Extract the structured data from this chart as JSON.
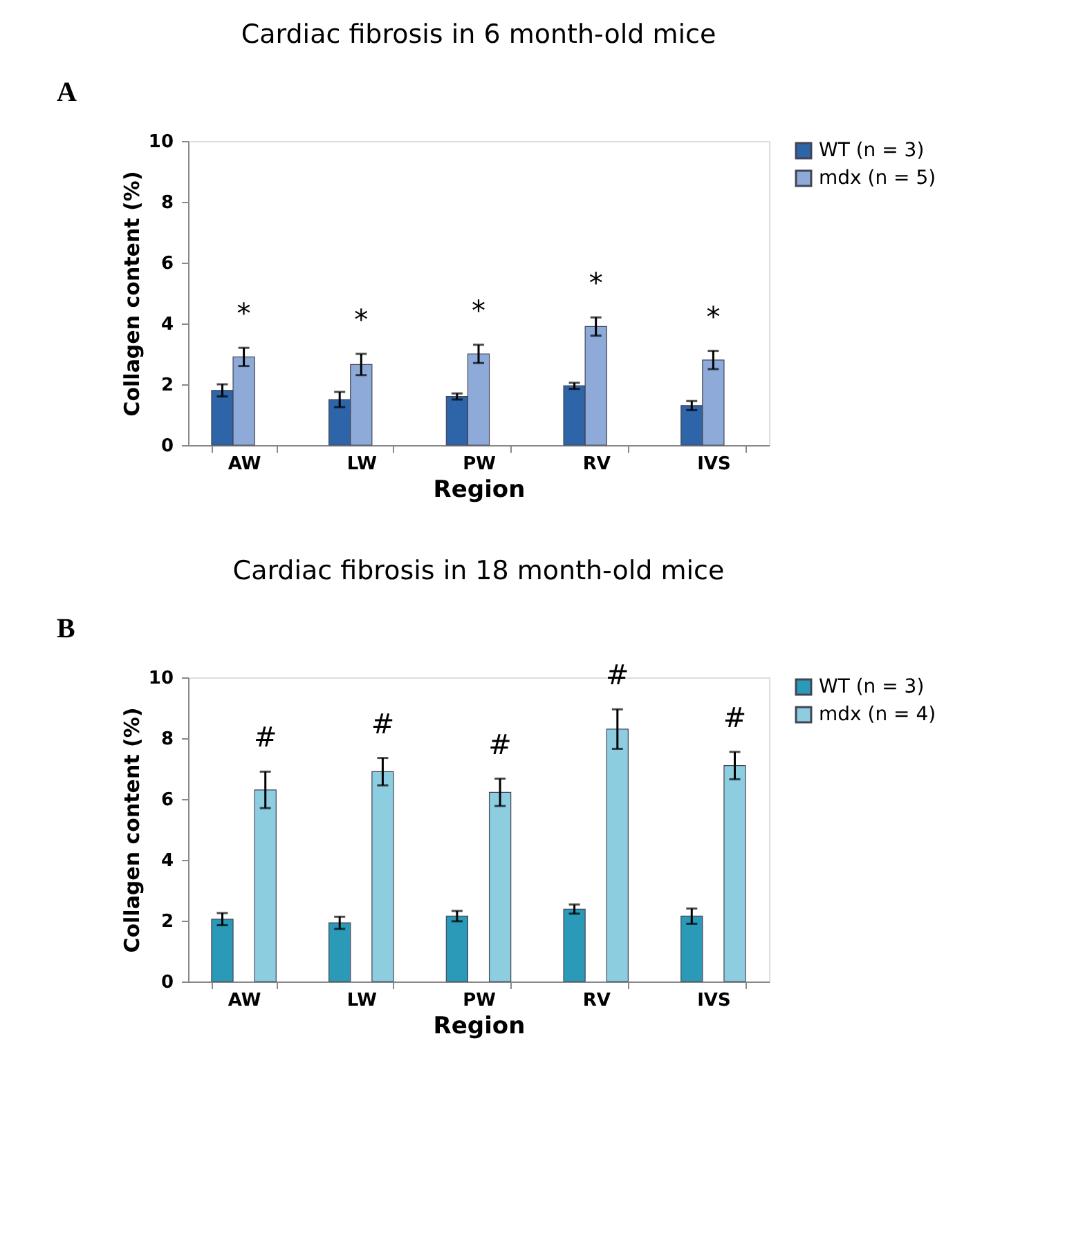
{
  "chart_data": [
    {
      "type": "bar",
      "title": "Cardiac fibrosis in 6 month-old mice",
      "xlabel": "Region",
      "ylabel": "Collagen content (%)",
      "categories": [
        "AW",
        "LW",
        "PW",
        "RV",
        "IVS"
      ],
      "series": [
        {
          "name": "WT  (n = 3)",
          "color": "#2e64a8",
          "values": [
            1.8,
            1.5,
            1.6,
            1.95,
            1.3
          ],
          "errors": [
            0.2,
            0.25,
            0.1,
            0.1,
            0.15
          ]
        },
        {
          "name": "mdx (n = 5)",
          "color": "#8eaad8",
          "values": [
            2.9,
            2.65,
            3.0,
            3.9,
            2.8
          ],
          "errors": [
            0.3,
            0.35,
            0.3,
            0.3,
            0.3
          ]
        }
      ],
      "ylim": [
        0,
        10
      ],
      "yticks": [
        0,
        2,
        4,
        6,
        8,
        10
      ],
      "grid": false,
      "legend": "right",
      "annotations": [
        "A",
        "*",
        "*",
        "*",
        "*",
        "*"
      ]
    },
    {
      "type": "bar",
      "title": "Cardiac fibrosis in 18 month-old mice",
      "xlabel": "Region",
      "ylabel": "Collagen content (%)",
      "categories": [
        "AW",
        "LW",
        "PW",
        "RV",
        "IVS"
      ],
      "series": [
        {
          "name": "WT  (n = 3)",
          "color": "#2a9ab8",
          "values": [
            2.05,
            1.93,
            2.15,
            2.38,
            2.15
          ],
          "errors": [
            0.2,
            0.2,
            0.17,
            0.15,
            0.25
          ]
        },
        {
          "name": "mdx (n = 4)",
          "color": "#8ccde0",
          "values": [
            6.3,
            6.9,
            6.22,
            8.3,
            7.1
          ],
          "errors": [
            0.6,
            0.45,
            0.45,
            0.65,
            0.45
          ]
        }
      ],
      "ylim": [
        0,
        10
      ],
      "yticks": [
        0,
        2,
        4,
        6,
        8,
        10
      ],
      "grid": false,
      "legend": "right",
      "annotations": [
        "B",
        "#",
        "#",
        "#",
        "#",
        "#"
      ]
    }
  ]
}
